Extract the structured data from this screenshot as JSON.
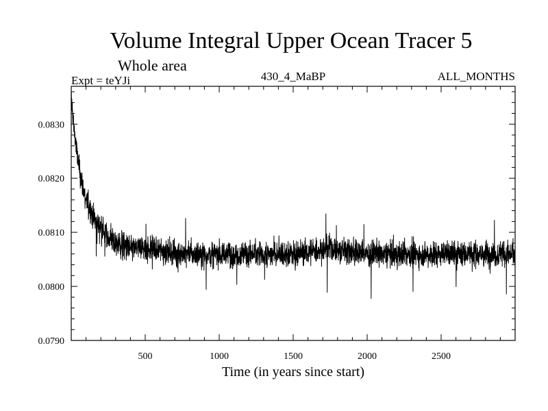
{
  "chart_data": {
    "type": "line",
    "title": "Volume Integral Upper Ocean Tracer 5",
    "subtitle": "Whole area",
    "experiment": "Expt = teYJi",
    "run_label": "430_4_MaBP",
    "months_label": "ALL_MONTHS",
    "xlabel": "Time (in years since start)",
    "ylabel": "",
    "xlim": [
      0,
      3000
    ],
    "ylim": [
      0.079,
      0.0837
    ],
    "x_ticks": [
      500,
      1000,
      1500,
      2000,
      2500
    ],
    "x_tick_labels": [
      "500",
      "1000",
      "1500",
      "2000",
      "2500"
    ],
    "y_ticks": [
      0.079,
      0.08,
      0.081,
      0.082,
      0.083
    ],
    "y_tick_labels": [
      "0.0790",
      "0.0800",
      "0.0810",
      "0.0820",
      "0.0830"
    ],
    "series": [
      {
        "name": "Volume integral",
        "color": "#000000",
        "description": "Noisy annual series: starts near 0.0835, decays rapidly over the first ~250 years, then fluctuates around 0.0806 (range approx. 0.0793–0.0816) until year 3000",
        "x": [
          0,
          20,
          40,
          60,
          80,
          100,
          150,
          200,
          250,
          300,
          400,
          500,
          750,
          1000,
          1250,
          1500,
          1750,
          2000,
          2250,
          2500,
          2750,
          3000
        ],
        "values": [
          0.0835,
          0.0829,
          0.0824,
          0.0821,
          0.0818,
          0.0816,
          0.0813,
          0.0811,
          0.0809,
          0.0808,
          0.0807,
          0.0807,
          0.0806,
          0.0806,
          0.0806,
          0.0806,
          0.0807,
          0.0806,
          0.0806,
          0.0806,
          0.0806,
          0.0806
        ],
        "noise_amplitude": 0.00045
      }
    ]
  }
}
